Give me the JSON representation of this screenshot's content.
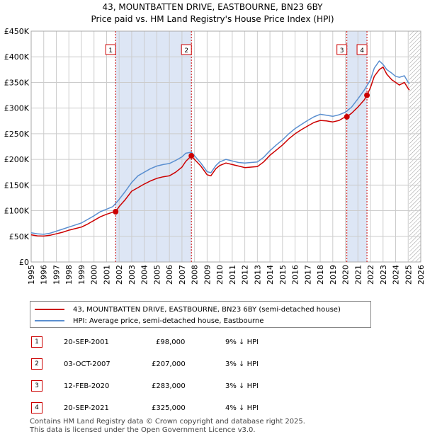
{
  "title": "43, MOUNTBATTEN DRIVE, EASTBOURNE, BN23 6BY",
  "subtitle": "Price paid vs. HM Land Registry's House Price Index (HPI)",
  "colors": {
    "hpi": "#5b8fd0",
    "price": "#cc0000",
    "shade": "#dde6f5",
    "grid": "#cccccc"
  },
  "chart_data": {
    "type": "line",
    "xlim": [
      1995,
      2026
    ],
    "ylim": [
      0,
      450000
    ],
    "x_ticks": [
      "1995",
      "1996",
      "1997",
      "1998",
      "1999",
      "2000",
      "2001",
      "2002",
      "2003",
      "2004",
      "2005",
      "2006",
      "2007",
      "2008",
      "2009",
      "2010",
      "2011",
      "2012",
      "2013",
      "2014",
      "2015",
      "2016",
      "2017",
      "2018",
      "2019",
      "2020",
      "2021",
      "2022",
      "2023",
      "2024",
      "2025",
      "2026"
    ],
    "y_ticks": [
      "£0",
      "£50K",
      "£100K",
      "£150K",
      "£200K",
      "£250K",
      "£300K",
      "£350K",
      "£400K",
      "£450K"
    ],
    "grid": true,
    "shaded_ranges": [
      [
        2001.72,
        2007.75
      ],
      [
        2020.12,
        2021.72
      ]
    ],
    "hatched_from": 2025.1,
    "series": [
      {
        "name": "43, MOUNTBATTEN DRIVE, EASTBOURNE, BN23 6BY (semi-detached house)",
        "color": "#cc0000",
        "x": [
          1995,
          1995.5,
          1996,
          1996.5,
          1997,
          1997.5,
          1998,
          1998.5,
          1999,
          1999.5,
          2000,
          2000.5,
          2001,
          2001.5,
          2001.72,
          2002,
          2002.5,
          2003,
          2003.5,
          2004,
          2004.5,
          2005,
          2005.5,
          2006,
          2006.5,
          2007,
          2007.3,
          2007.75,
          2008,
          2008.5,
          2009,
          2009.3,
          2009.7,
          2010,
          2010.5,
          2011,
          2011.5,
          2012,
          2012.5,
          2013,
          2013.5,
          2014,
          2014.5,
          2015,
          2015.5,
          2016,
          2016.5,
          2017,
          2017.5,
          2018,
          2018.5,
          2019,
          2019.5,
          2020,
          2020.12,
          2020.5,
          2021,
          2021.5,
          2021.72,
          2022,
          2022.3,
          2022.7,
          2023,
          2023.3,
          2023.7,
          2024,
          2024.3,
          2024.7,
          2025,
          2025.1
        ],
        "y": [
          53000,
          51000,
          50500,
          52000,
          55000,
          58000,
          62000,
          65000,
          68000,
          74000,
          81000,
          88000,
          93000,
          97000,
          98000,
          108000,
          122000,
          138000,
          145000,
          152000,
          158000,
          163000,
          166000,
          168000,
          175000,
          185000,
          196000,
          207000,
          200000,
          187000,
          170000,
          168000,
          182000,
          188000,
          193000,
          190000,
          187000,
          184000,
          185000,
          186000,
          195000,
          208000,
          218000,
          228000,
          240000,
          250000,
          258000,
          265000,
          272000,
          276000,
          275000,
          273000,
          276000,
          283000,
          283000,
          290000,
          302000,
          316000,
          325000,
          340000,
          362000,
          375000,
          380000,
          366000,
          355000,
          350000,
          345000,
          350000,
          338000,
          335000
        ]
      },
      {
        "name": "HPI: Average price, semi-detached house, Eastbourne",
        "color": "#5b8fd0",
        "x": [
          1995,
          1995.5,
          1996,
          1996.5,
          1997,
          1997.5,
          1998,
          1998.5,
          1999,
          1999.5,
          2000,
          2000.5,
          2001,
          2001.5,
          2002,
          2002.5,
          2003,
          2003.5,
          2004,
          2004.5,
          2005,
          2005.5,
          2006,
          2006.5,
          2007,
          2007.3,
          2007.75,
          2008,
          2008.5,
          2009,
          2009.3,
          2009.7,
          2010,
          2010.5,
          2011,
          2011.5,
          2012,
          2012.5,
          2013,
          2013.5,
          2014,
          2014.5,
          2015,
          2015.5,
          2016,
          2016.5,
          2017,
          2017.5,
          2018,
          2018.5,
          2019,
          2019.5,
          2020,
          2020.5,
          2021,
          2021.5,
          2022,
          2022.3,
          2022.7,
          2023,
          2023.3,
          2023.7,
          2024,
          2024.3,
          2024.7,
          2025,
          2025.1
        ],
        "y": [
          57000,
          55000,
          54000,
          56000,
          60000,
          64000,
          68000,
          72000,
          76000,
          83000,
          90000,
          98000,
          103000,
          108000,
          122000,
          138000,
          155000,
          168000,
          175000,
          182000,
          187000,
          190000,
          192000,
          198000,
          205000,
          212000,
          214000,
          207000,
          193000,
          176000,
          174000,
          188000,
          195000,
          200000,
          197000,
          194000,
          193000,
          194000,
          195000,
          204000,
          217000,
          228000,
          238000,
          250000,
          260000,
          268000,
          276000,
          283000,
          288000,
          286000,
          284000,
          287000,
          292000,
          302000,
          318000,
          335000,
          355000,
          378000,
          392000,
          385000,
          375000,
          368000,
          362000,
          360000,
          363000,
          350000,
          348000
        ]
      }
    ],
    "sales": [
      {
        "marker": "1",
        "x": 2001.72,
        "y": 98000,
        "date": "20-SEP-2001",
        "price": "£98,000",
        "hpi": "9% ↓ HPI"
      },
      {
        "marker": "2",
        "x": 2007.75,
        "y": 207000,
        "date": "03-OCT-2007",
        "price": "£207,000",
        "hpi": "3% ↓ HPI"
      },
      {
        "marker": "3",
        "x": 2020.12,
        "y": 283000,
        "date": "12-FEB-2020",
        "price": "£283,000",
        "hpi": "3% ↓ HPI"
      },
      {
        "marker": "4",
        "x": 2021.72,
        "y": 325000,
        "date": "20-SEP-2021",
        "price": "£325,000",
        "hpi": "4% ↓ HPI"
      }
    ]
  },
  "legend": {
    "price_label": "43, MOUNTBATTEN DRIVE, EASTBOURNE, BN23 6BY (semi-detached house)",
    "hpi_label": "HPI: Average price, semi-detached house, Eastbourne"
  },
  "footer": {
    "line1": "Contains HM Land Registry data © Crown copyright and database right 2025.",
    "line2": "This data is licensed under the Open Government Licence v3.0."
  }
}
